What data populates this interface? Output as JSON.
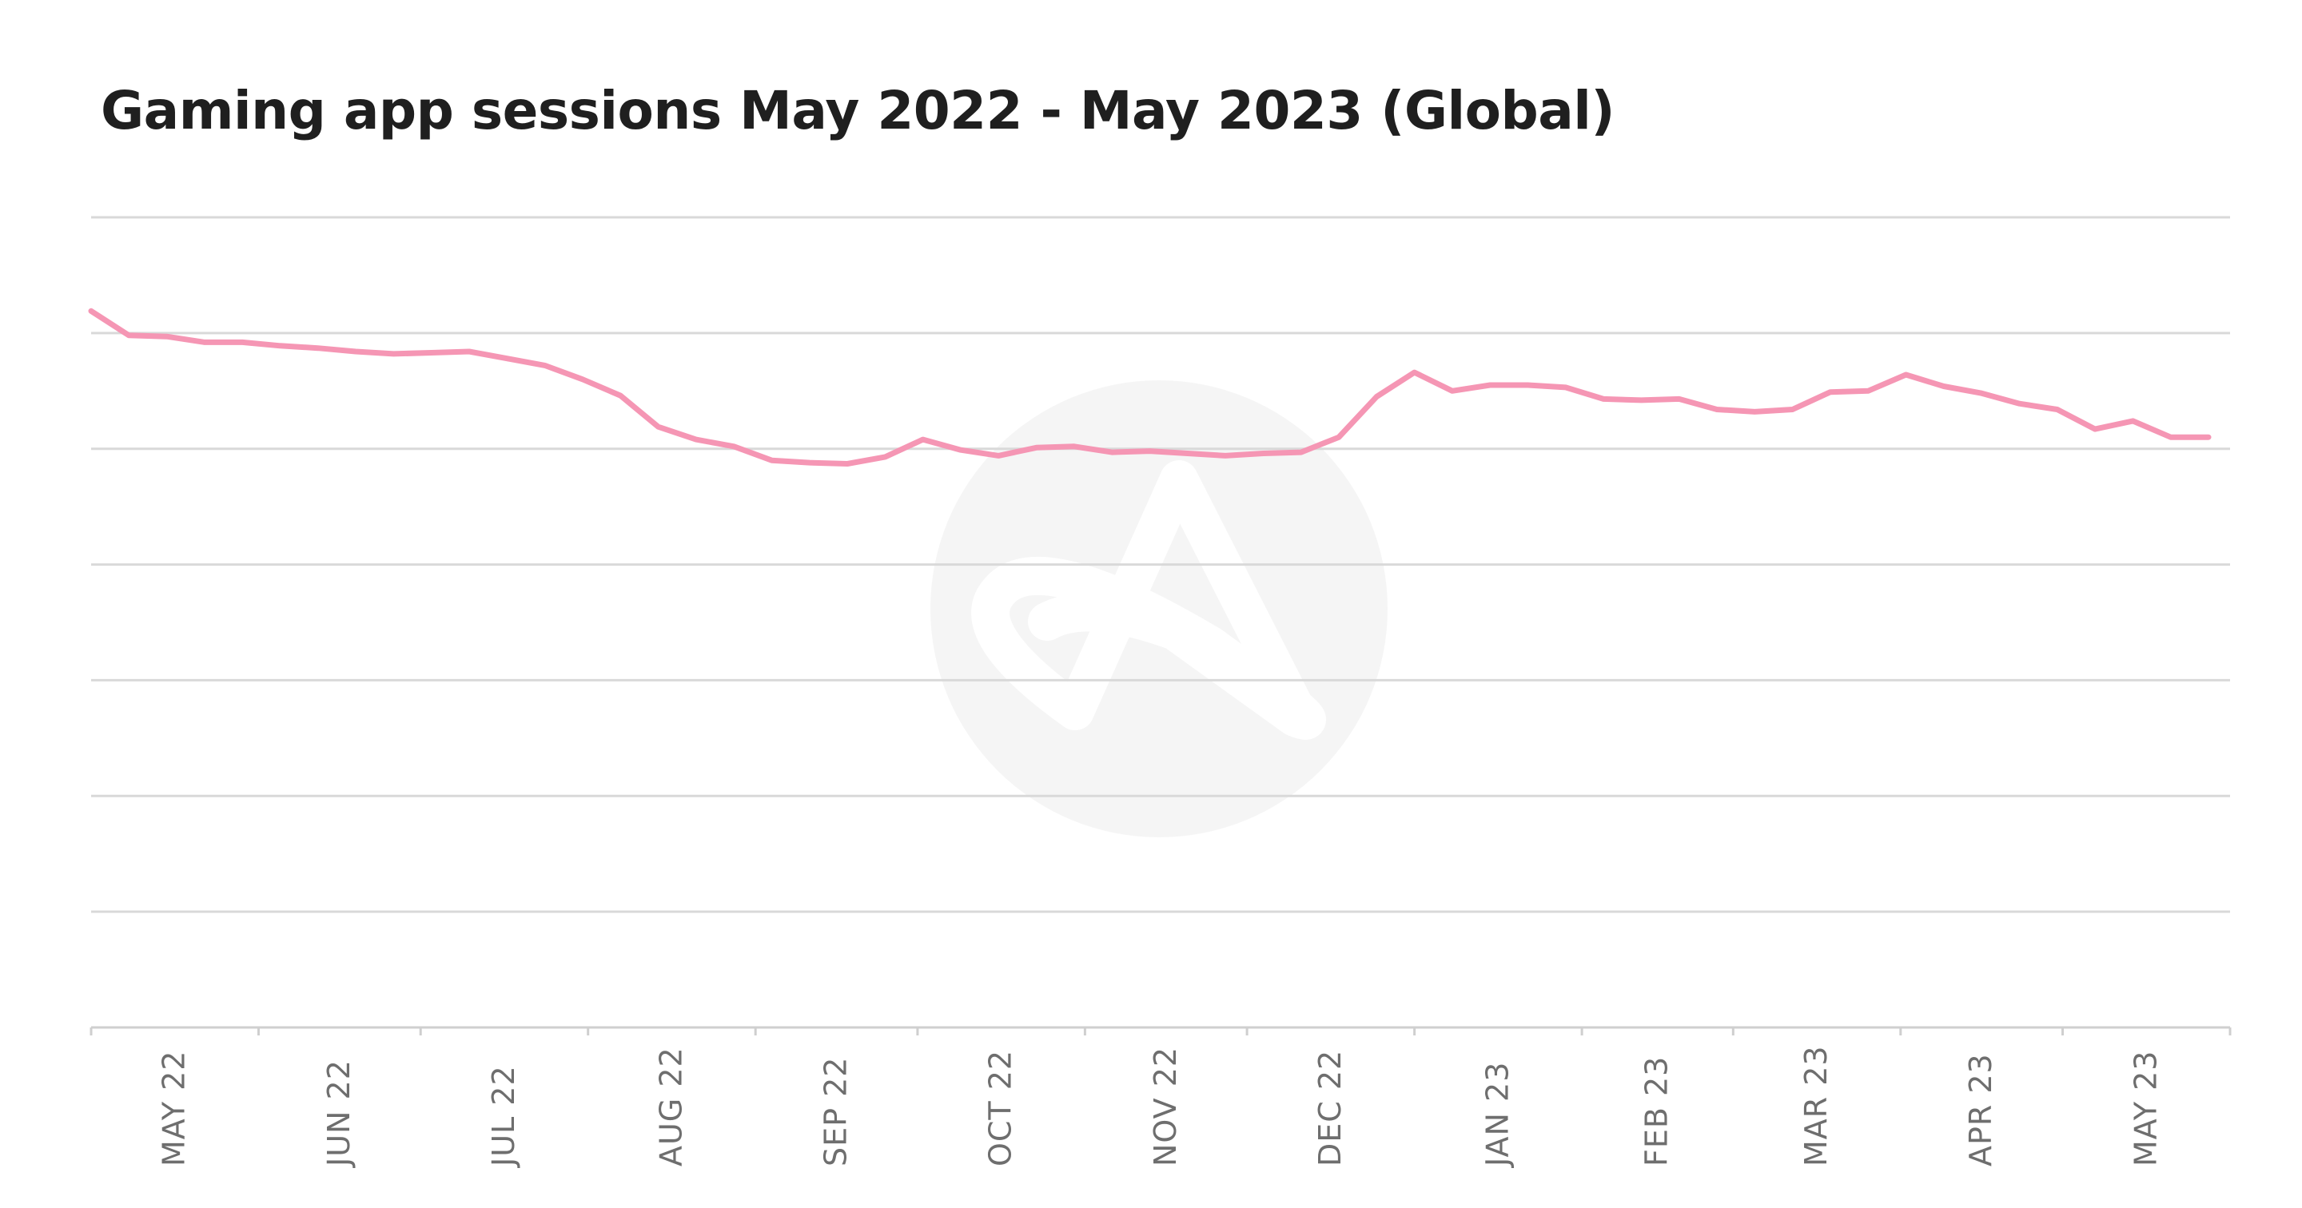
{
  "chart_data": {
    "type": "line",
    "title": "Gaming app sessions May 2022 - May 2023 (Global)",
    "xlabel": "",
    "ylabel": "",
    "x_tick_labels": [
      "MAY 22",
      "JUN 22",
      "JUL 22",
      "AUG 22",
      "SEP 22",
      "OCT 22",
      "NOV 22",
      "DEC 22",
      "JAN 23",
      "FEB 23",
      "MAR 23",
      "APR 23",
      "MAY 23"
    ],
    "y_axis_labels_shown": false,
    "ylim": [
      0,
      7
    ],
    "grid": true,
    "grid_lines": 7,
    "legend": "none",
    "line_color": "#f596b4",
    "gridline_color": "#d9d9d9",
    "watermark": "brand-logo-watermark",
    "series": [
      {
        "x": [
          "2022-05-01",
          "2022-05-08",
          "2022-05-15",
          "2022-05-22",
          "2022-05-29",
          "2022-06-05",
          "2022-06-12",
          "2022-06-19",
          "2022-06-26",
          "2022-07-03",
          "2022-07-10",
          "2022-07-17",
          "2022-07-24",
          "2022-07-31",
          "2022-08-07",
          "2022-08-14",
          "2022-08-21",
          "2022-08-28",
          "2022-09-04",
          "2022-09-11",
          "2022-09-18",
          "2022-09-25",
          "2022-10-02",
          "2022-10-09",
          "2022-10-16",
          "2022-10-23",
          "2022-10-30",
          "2022-11-06",
          "2022-11-13",
          "2022-11-20",
          "2022-11-27",
          "2022-12-04",
          "2022-12-11",
          "2022-12-18",
          "2022-12-25",
          "2023-01-01",
          "2023-01-08",
          "2023-01-15",
          "2023-01-22",
          "2023-01-29",
          "2023-02-05",
          "2023-02-12",
          "2023-02-19",
          "2023-02-26",
          "2023-03-05",
          "2023-03-12",
          "2023-03-19",
          "2023-03-26",
          "2023-04-02",
          "2023-04-09",
          "2023-04-16",
          "2023-04-23",
          "2023-04-30",
          "2023-05-07",
          "2023-05-14",
          "2023-05-21",
          "2023-05-28"
        ],
        "values": [
          6.19,
          5.98,
          5.97,
          5.92,
          5.92,
          5.89,
          5.87,
          5.84,
          5.82,
          5.83,
          5.84,
          5.78,
          5.72,
          5.6,
          5.46,
          5.19,
          5.08,
          5.02,
          4.9,
          4.88,
          4.87,
          4.93,
          5.08,
          4.99,
          4.94,
          5.01,
          5.02,
          4.97,
          4.98,
          4.96,
          4.94,
          4.96,
          4.97,
          5.1,
          5.45,
          5.66,
          5.5,
          5.55,
          5.55,
          5.53,
          5.43,
          5.42,
          5.43,
          5.34,
          5.32,
          5.34,
          5.49,
          5.5,
          5.64,
          5.54,
          5.48,
          5.39,
          5.34,
          5.17,
          5.24,
          5.1,
          5.1
        ]
      }
    ]
  }
}
